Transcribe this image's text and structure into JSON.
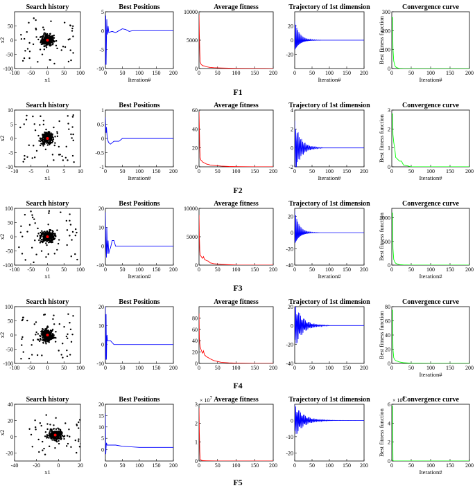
{
  "figure": {
    "rows": [
      "F1",
      "F2",
      "F3",
      "F4",
      "F5"
    ],
    "panel_titles": [
      "Search history",
      "Best Positions",
      "Average fitness",
      "Trajectory of 1st dimension",
      "Convergence curve"
    ],
    "colors": {
      "search_points": "#000000",
      "search_best": "#ff0000",
      "best_positions": "#0000ff",
      "average_fitness": "#ff0000",
      "trajectory": "#0000ff",
      "convergence": "#00ff00"
    }
  },
  "chart_data": [
    {
      "row": "F1",
      "type": "scatter",
      "title": "Search history",
      "xlabel": "x1",
      "ylabel": "x2",
      "xlim": [
        -100,
        100
      ],
      "ylim": [
        -100,
        100
      ],
      "xticks": [
        -100,
        -50,
        0,
        50,
        100
      ],
      "yticks": [
        -100,
        -50,
        0,
        50
      ],
      "spread": 60
    },
    {
      "row": "F1",
      "type": "line",
      "title": "Best Positions",
      "xlabel": "Iteration#",
      "xlim": [
        0,
        200
      ],
      "ylim": [
        -10,
        5
      ],
      "xticks": [
        0,
        50,
        100,
        150,
        200
      ],
      "yticks": [
        -10,
        -5,
        0,
        5
      ],
      "series": [
        {
          "x": [
            0,
            1,
            2,
            3,
            4,
            5,
            6,
            8,
            10,
            15,
            20,
            30,
            40,
            50,
            60,
            70,
            80,
            100,
            150,
            200
          ],
          "values": [
            -9,
            4,
            -9,
            -3,
            3,
            0,
            -1,
            1.2,
            -0.5,
            -0.3,
            -0.2,
            -0.5,
            0,
            0.5,
            0.3,
            -0.2,
            0,
            0,
            0,
            0
          ]
        }
      ]
    },
    {
      "row": "F1",
      "type": "line",
      "title": "Average fitness",
      "xlabel": "",
      "xlim": [
        0,
        200
      ],
      "ylim": [
        0,
        10000
      ],
      "xticks": [
        0,
        50,
        100,
        150,
        200
      ],
      "yticks": [
        0,
        5000,
        10000
      ],
      "series": [
        {
          "x": [
            0,
            1,
            2,
            3,
            5,
            8,
            10,
            15,
            20,
            30,
            40,
            60,
            80,
            100,
            150,
            200
          ],
          "values": [
            9500,
            6000,
            3000,
            1200,
            800,
            600,
            500,
            450,
            300,
            200,
            150,
            100,
            60,
            40,
            20,
            10
          ]
        }
      ]
    },
    {
      "row": "F1",
      "type": "line",
      "title": "Trajectory of 1st dimension",
      "xlabel": "Iteration#",
      "xlim": [
        0,
        200
      ],
      "ylim": [
        -40,
        40
      ],
      "xticks": [
        0,
        50,
        100,
        150,
        200
      ],
      "yticks": [
        -20,
        0,
        20
      ],
      "osc": {
        "amp": 30,
        "period": 6,
        "decay": 14,
        "offset": 0,
        "cutoff": 75
      }
    },
    {
      "row": "F1",
      "type": "line",
      "title": "Convergence curve",
      "xlabel": "Iteration#",
      "ylabel": "Best fitness function",
      "xlim": [
        0,
        200
      ],
      "ylim": [
        0,
        300
      ],
      "xticks": [
        0,
        50,
        100,
        150,
        200
      ],
      "yticks": [
        0,
        100,
        200,
        300
      ],
      "series": [
        {
          "x": [
            0,
            2,
            3,
            5,
            8,
            10,
            15,
            20,
            30,
            50,
            100,
            200
          ],
          "values": [
            270,
            270,
            105,
            40,
            15,
            8,
            3,
            1,
            0.5,
            0.1,
            0,
            0
          ]
        }
      ]
    },
    {
      "row": "F2",
      "type": "scatter",
      "title": "Search history",
      "xlabel": "x1",
      "ylabel": "x2",
      "xlim": [
        -10,
        10
      ],
      "ylim": [
        -10,
        10
      ],
      "xticks": [
        -10,
        -5,
        0,
        5,
        10
      ],
      "yticks": [
        -10,
        -5,
        0,
        5,
        10
      ],
      "spread": 6
    },
    {
      "row": "F2",
      "type": "line",
      "title": "Best Positions",
      "xlabel": "Iteration#",
      "xlim": [
        0,
        200
      ],
      "ylim": [
        -1,
        1
      ],
      "xticks": [
        0,
        50,
        100,
        150,
        200
      ],
      "yticks": [
        -1,
        -0.5,
        0,
        0.5,
        1
      ],
      "series": [
        {
          "x": [
            0,
            1,
            2,
            3,
            5,
            8,
            10,
            15,
            20,
            25,
            30,
            40,
            50,
            60,
            100,
            150,
            200
          ],
          "values": [
            0.75,
            0.35,
            0.2,
            0.4,
            0.1,
            -0.1,
            -0.15,
            -0.2,
            -0.15,
            -0.1,
            -0.1,
            -0.1,
            0,
            0,
            0,
            0,
            0
          ]
        }
      ]
    },
    {
      "row": "F2",
      "type": "line",
      "title": "Average fitness",
      "xlabel": "",
      "xlim": [
        0,
        200
      ],
      "ylim": [
        0,
        60
      ],
      "xticks": [
        0,
        50,
        100,
        150,
        200
      ],
      "yticks": [
        0,
        20,
        40,
        60
      ],
      "series": [
        {
          "x": [
            0,
            1,
            2,
            3,
            5,
            8,
            10,
            15,
            20,
            30,
            40,
            60,
            80,
            100,
            150,
            200
          ],
          "values": [
            58,
            40,
            20,
            10,
            7,
            6,
            5,
            4,
            3,
            2,
            1.5,
            0.8,
            0.4,
            0.2,
            0.1,
            0
          ]
        }
      ]
    },
    {
      "row": "F2",
      "type": "line",
      "title": "Trajectory of 1st dimension",
      "xlabel": "Iteration#",
      "xlim": [
        0,
        200
      ],
      "ylim": [
        -2,
        4
      ],
      "xticks": [
        0,
        50,
        100,
        150,
        200
      ],
      "yticks": [
        -2,
        0,
        2,
        4
      ],
      "osc": {
        "amp": 3.2,
        "period": 5,
        "decay": 18,
        "offset": 0,
        "cutoff": 80
      }
    },
    {
      "row": "F2",
      "type": "line",
      "title": "Convergence curve",
      "xlabel": "Iteration#",
      "ylabel": "Best fitness function",
      "xlim": [
        0,
        200
      ],
      "ylim": [
        0,
        3
      ],
      "xticks": [
        0,
        50,
        100,
        150,
        200
      ],
      "yticks": [
        0,
        1,
        2,
        3
      ],
      "series": [
        {
          "x": [
            0,
            2,
            3,
            5,
            8,
            10,
            15,
            20,
            25,
            30,
            40,
            50,
            100,
            200
          ],
          "values": [
            2.8,
            2.8,
            1.7,
            1.3,
            0.9,
            0.5,
            0.4,
            0.3,
            0.3,
            0.1,
            0.05,
            0,
            0,
            0
          ]
        }
      ]
    },
    {
      "row": "F3",
      "type": "scatter",
      "title": "Search history",
      "xlabel": "x1",
      "ylabel": "x2",
      "xlim": [
        -100,
        100
      ],
      "ylim": [
        -100,
        100
      ],
      "xticks": [
        -100,
        -50,
        0,
        50,
        100
      ],
      "yticks": [
        -100,
        -50,
        0,
        50,
        100
      ],
      "spread": 65
    },
    {
      "row": "F3",
      "type": "line",
      "title": "Best Positions",
      "xlabel": "Iteration#",
      "xlim": [
        0,
        200
      ],
      "ylim": [
        -10,
        20
      ],
      "xticks": [
        0,
        50,
        100,
        150,
        200
      ],
      "yticks": [
        -10,
        0,
        10,
        20
      ],
      "series": [
        {
          "x": [
            0,
            1,
            2,
            3,
            4,
            6,
            8,
            10,
            12,
            15,
            20,
            25,
            30,
            40,
            60,
            100,
            150,
            200
          ],
          "values": [
            18,
            5,
            -2,
            -6,
            10,
            -4,
            3,
            -4,
            -2,
            -1,
            3,
            3,
            0,
            0,
            0,
            0,
            0,
            0
          ]
        }
      ]
    },
    {
      "row": "F3",
      "type": "line",
      "title": "Average fitness",
      "xlabel": "",
      "xlim": [
        0,
        200
      ],
      "ylim": [
        0,
        10000
      ],
      "xticks": [
        0,
        50,
        100,
        150,
        200
      ],
      "yticks": [
        0,
        5000,
        10000
      ],
      "series": [
        {
          "x": [
            0,
            1,
            2,
            3,
            5,
            8,
            10,
            12,
            15,
            20,
            25,
            30,
            40,
            60,
            80,
            100,
            150,
            200
          ],
          "values": [
            8800,
            5000,
            2500,
            1800,
            1600,
            1300,
            1200,
            1500,
            1000,
            800,
            700,
            400,
            250,
            120,
            60,
            30,
            10,
            5
          ]
        }
      ]
    },
    {
      "row": "F3",
      "type": "line",
      "title": "Trajectory of 1st dimension",
      "xlabel": "Iteration#",
      "xlim": [
        0,
        200
      ],
      "ylim": [
        -40,
        30
      ],
      "xticks": [
        0,
        50,
        100,
        150,
        200
      ],
      "yticks": [
        -40,
        -20,
        0,
        20
      ],
      "osc": {
        "amp": 30,
        "period": 6,
        "decay": 13,
        "offset": 0,
        "cutoff": 70
      }
    },
    {
      "row": "F3",
      "type": "line",
      "title": "Convergence curve",
      "xlabel": "Iteration#",
      "ylabel": "Best fitness function",
      "xlim": [
        0,
        200
      ],
      "ylim": [
        0,
        1200
      ],
      "xticks": [
        0,
        50,
        100,
        150,
        200
      ],
      "yticks": [
        0,
        500,
        1000
      ],
      "series": [
        {
          "x": [
            0,
            2,
            3,
            5,
            8,
            10,
            15,
            20,
            30,
            50,
            100,
            200
          ],
          "values": [
            1100,
            1100,
            350,
            120,
            60,
            40,
            20,
            10,
            5,
            1,
            0,
            0
          ]
        }
      ]
    },
    {
      "row": "F4",
      "type": "scatter",
      "title": "Search history",
      "xlabel": "",
      "ylabel": "x2",
      "xlim": [
        -100,
        100
      ],
      "ylim": [
        -100,
        100
      ],
      "xticks": [
        -100,
        -50,
        0,
        50,
        100
      ],
      "yticks": [
        -100,
        -50,
        0,
        50,
        100
      ],
      "spread": 60
    },
    {
      "row": "F4",
      "type": "line",
      "title": "Best Positions",
      "xlabel": "",
      "xlim": [
        0,
        200
      ],
      "ylim": [
        -10,
        20
      ],
      "xticks": [
        0,
        50,
        100,
        150,
        200
      ],
      "yticks": [
        -10,
        0,
        10,
        20
      ],
      "series": [
        {
          "x": [
            0,
            1,
            2,
            3,
            4,
            5,
            6,
            8,
            10,
            15,
            20,
            25,
            30,
            40,
            60,
            100,
            150,
            200
          ],
          "values": [
            20,
            -8,
            16,
            -8,
            4,
            5,
            2,
            2,
            2,
            2,
            1,
            0,
            0,
            0,
            0,
            0,
            0,
            0
          ]
        }
      ]
    },
    {
      "row": "F4",
      "type": "line",
      "title": "Average fitness",
      "xlabel": "",
      "xlim": [
        0,
        200
      ],
      "ylim": [
        0,
        100
      ],
      "xticks": [
        0,
        50,
        100,
        150,
        200
      ],
      "yticks": [
        0,
        20,
        40,
        60,
        80
      ],
      "series": [
        {
          "x": [
            0,
            1,
            2,
            3,
            5,
            8,
            10,
            12,
            15,
            20,
            25,
            30,
            40,
            60,
            80,
            100,
            150,
            200
          ],
          "values": [
            88,
            45,
            35,
            30,
            25,
            20,
            18,
            22,
            15,
            12,
            10,
            8,
            5,
            2,
            1,
            0.5,
            0.1,
            0
          ]
        }
      ]
    },
    {
      "row": "F4",
      "type": "line",
      "title": "Trajectory of 1st dimension",
      "xlabel": "",
      "xlim": [
        0,
        200
      ],
      "ylim": [
        -40,
        20
      ],
      "xticks": [
        0,
        50,
        100,
        150,
        200
      ],
      "yticks": [
        -40,
        -20,
        0,
        20
      ],
      "osc": {
        "amp": 28,
        "period": 7,
        "decay": 22,
        "offset": 0,
        "cutoff": 100
      }
    },
    {
      "row": "F4",
      "type": "line",
      "title": "Convergence curve",
      "xlabel": "Iteration#",
      "ylabel": "Best fitness function",
      "xlim": [
        0,
        200
      ],
      "ylim": [
        0,
        80
      ],
      "xticks": [
        0,
        50,
        100,
        150,
        200
      ],
      "yticks": [
        0,
        20,
        40,
        60,
        80
      ],
      "series": [
        {
          "x": [
            0,
            2,
            3,
            5,
            8,
            10,
            15,
            20,
            30,
            50,
            100,
            200
          ],
          "values": [
            75,
            75,
            20,
            8,
            5,
            4,
            3,
            2,
            1,
            0.3,
            0,
            0
          ]
        }
      ]
    },
    {
      "row": "F5",
      "type": "scatter",
      "title": "Search history",
      "xlabel": "x1",
      "ylabel": "x2",
      "xlim": [
        -40,
        20
      ],
      "ylim": [
        -30,
        40
      ],
      "xticks": [
        -40,
        -20,
        0,
        20
      ],
      "yticks": [
        -20,
        0,
        20,
        40
      ],
      "spread": 18,
      "center": [
        -3,
        2
      ]
    },
    {
      "row": "F5",
      "type": "line",
      "title": "Best Positions",
      "xlabel": "",
      "xlim": [
        0,
        200
      ],
      "ylim": [
        -5,
        20
      ],
      "xticks": [
        0,
        50,
        100,
        150,
        200
      ],
      "yticks": [
        0,
        5,
        10,
        15,
        20
      ],
      "series": [
        {
          "x": [
            0,
            1,
            2,
            3,
            5,
            8,
            10,
            15,
            20,
            30,
            50,
            100,
            150,
            200
          ],
          "values": [
            16,
            -2,
            1,
            3,
            2,
            2,
            2,
            2,
            2,
            2,
            1.5,
            1,
            1,
            1
          ]
        }
      ]
    },
    {
      "row": "F5",
      "type": "line",
      "title": "Average fitness",
      "xlabel": "",
      "xlim": [
        0,
        200
      ],
      "ylim": [
        0,
        3
      ],
      "xticks": [
        0,
        50,
        100,
        150,
        200
      ],
      "yticks": [
        0,
        1,
        2,
        3
      ],
      "multiplier": "× 10",
      "multiplier_exp": "7",
      "series": [
        {
          "x": [
            0,
            1,
            2,
            3,
            5,
            8,
            10,
            20,
            50,
            100,
            200
          ],
          "values": [
            2.8,
            1.5,
            0.5,
            0.1,
            0.05,
            0.03,
            0.02,
            0.01,
            0,
            0,
            0
          ]
        }
      ]
    },
    {
      "row": "F5",
      "type": "line",
      "title": "Trajectory of 1st dimension",
      "xlabel": "",
      "xlim": [
        0,
        200
      ],
      "ylim": [
        -25,
        10
      ],
      "xticks": [
        0,
        50,
        100,
        150,
        200
      ],
      "yticks": [
        -20,
        -10,
        0
      ],
      "osc": {
        "amp": 12,
        "period": 7,
        "decay": 25,
        "offset": 0,
        "cutoff": 200
      }
    },
    {
      "row": "F5",
      "type": "line",
      "title": "Convergence curve",
      "xlabel": "Iteration#",
      "ylabel": "Best fitness function",
      "xlim": [
        0,
        200
      ],
      "ylim": [
        0,
        6
      ],
      "xticks": [
        0,
        50,
        100,
        150,
        200
      ],
      "yticks": [
        0,
        2,
        4,
        6
      ],
      "multiplier": "× 10",
      "multiplier_exp": "6",
      "series": [
        {
          "x": [
            0,
            2,
            3,
            5,
            10,
            50,
            200
          ],
          "values": [
            5.8,
            5.8,
            0.05,
            0,
            0,
            0,
            0
          ]
        }
      ]
    }
  ]
}
